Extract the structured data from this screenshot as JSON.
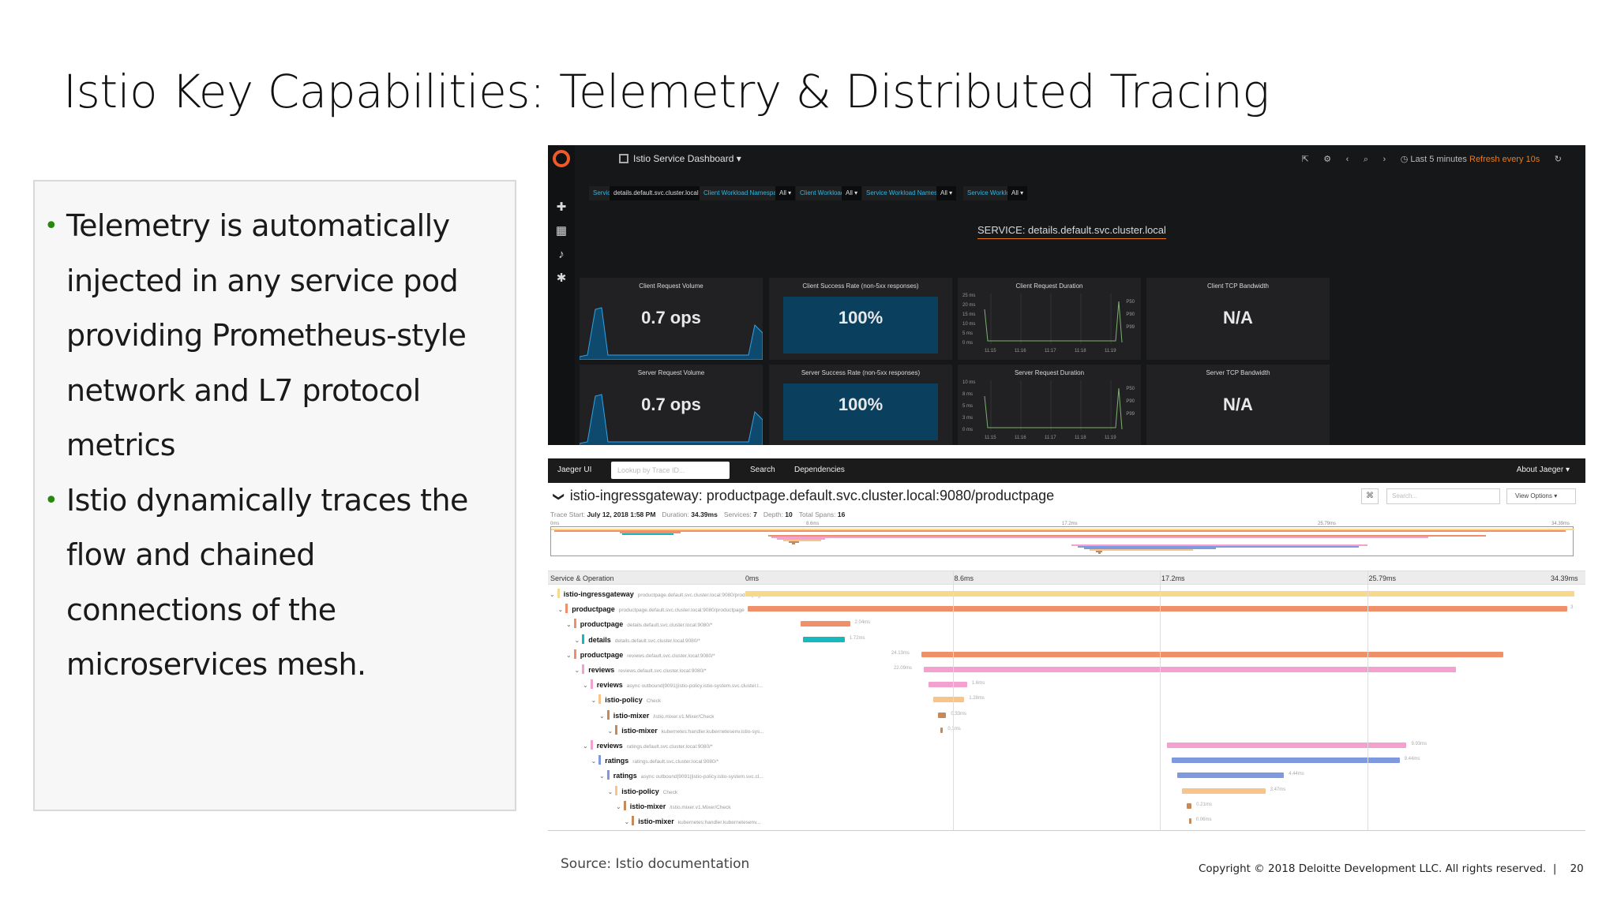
{
  "slide": {
    "title": "Istio Key Capabilities: Telemetry & Distributed Tracing",
    "bullets": [
      "Telemetry is automatically injected in any service pod providing Prometheus-style network and L7 protocol metrics",
      "Istio dynamically traces the flow and chained connections of the microservices mesh."
    ],
    "bullet_glyph": "•",
    "source": "Source: Istio documentation",
    "copyright": "Copyright © 2018 Deloitte Development LLC. All rights reserved.",
    "separator": "|",
    "page_number": "20"
  },
  "grafana": {
    "dashboard_title": "Istio Service Dashboard",
    "dropdown_glyph": "▾",
    "time_range": "Last 5 minutes",
    "refresh": "Refresh every 10s",
    "variables": [
      {
        "label": "Service",
        "value": "details.default.svc.cluster.local ▾"
      },
      {
        "label": "Client Workload Namespace",
        "value": "All ▾"
      },
      {
        "label": "Client Workload",
        "value": "All ▾"
      },
      {
        "label": "Service Workload Namespace",
        "value": "All ▾"
      },
      {
        "label": "Service Workload",
        "value": "All ▾"
      }
    ],
    "service_header": "SERVICE: details.default.svc.cluster.local",
    "panels_top": [
      {
        "title": "Client Request Volume",
        "value": "0.7 ops"
      },
      {
        "title": "Client Success Rate (non-5xx responses)",
        "value": "100%"
      },
      {
        "title": "Client Request Duration",
        "y_ticks": [
          "25 ms",
          "20 ms",
          "15 ms",
          "10 ms",
          "5 ms",
          "0 ms"
        ],
        "x_ticks": [
          "11:15",
          "11:16",
          "11:17",
          "11:18",
          "11:19"
        ],
        "legend": [
          "P50",
          "P90",
          "P99"
        ]
      },
      {
        "title": "Client TCP Bandwidth",
        "value": "N/A"
      }
    ],
    "panels_bottom": [
      {
        "title": "Server Request Volume",
        "value": "0.7 ops"
      },
      {
        "title": "Server Success Rate (non-5xx responses)",
        "value": "100%"
      },
      {
        "title": "Server Request Duration",
        "y_ticks": [
          "10 ms",
          "8 ms",
          "5 ms",
          "3 ms",
          "0 ms"
        ],
        "x_ticks": [
          "11:15",
          "11:16",
          "11:17",
          "11:18",
          "11:19"
        ],
        "legend": [
          "P50",
          "P90",
          "P99"
        ]
      },
      {
        "title": "Server TCP Bandwidth",
        "value": "N/A"
      }
    ],
    "colors": {
      "accent": "#eb7b18",
      "blue": "#33b5e5",
      "panel": "#212124",
      "stat_bg": "#0b3f5e"
    }
  },
  "jaeger": {
    "brand": "Jaeger UI",
    "lookup_placeholder": "Lookup by Trace ID...",
    "nav": [
      "Search",
      "Dependencies"
    ],
    "about": "About Jaeger ▾",
    "trace_title": "istio-ingressgateway: productpage.default.svc.cluster.local:9080/productpage",
    "chevron": "❯",
    "kbd": "⌘",
    "search_placeholder": "Search...",
    "view_options": "View Options ▾",
    "meta": [
      {
        "label": "Trace Start:",
        "value": "July 12, 2018 1:58 PM"
      },
      {
        "label": "Duration:",
        "value": "34.39ms"
      },
      {
        "label": "Services:",
        "value": "7"
      },
      {
        "label": "Depth:",
        "value": "10"
      },
      {
        "label": "Total Spans:",
        "value": "16"
      }
    ],
    "mini_ticks": [
      "0ms",
      "8.6ms",
      "17.2ms",
      "25.79ms",
      "34.39ms"
    ],
    "header_label": "Service & Operation",
    "time_ticks": [
      "0ms",
      "8.6ms",
      "17.2ms",
      "25.79ms",
      "34.39ms"
    ],
    "spans": [
      {
        "service": "istio-ingressgateway",
        "op": "productpage.default.svc.cluster.local:9080/productpage",
        "depth": 0,
        "start": 0,
        "dur": 34.39,
        "label": "",
        "color": "#f7d88c"
      },
      {
        "service": "productpage",
        "op": "productpage.default.svc.cluster.local:9080/productpage",
        "depth": 1,
        "start": 0.1,
        "dur": 34.0,
        "label": "3",
        "color": "#f0906a"
      },
      {
        "service": "productpage",
        "op": "details.default.svc.cluster.local:9080/*",
        "depth": 2,
        "start": 2.3,
        "dur": 2.04,
        "label": "2.04ms",
        "color": "#f0906a"
      },
      {
        "service": "details",
        "op": "details.default.svc.cluster.local:9080/*",
        "depth": 3,
        "start": 2.4,
        "dur": 1.72,
        "label": "1.72ms",
        "color": "#17b8be"
      },
      {
        "service": "productpage",
        "op": "reviews.default.svc.cluster.local:9080/*",
        "depth": 2,
        "start": 7.3,
        "dur": 24.13,
        "label": "24.13ms",
        "color": "#f0906a"
      },
      {
        "service": "reviews",
        "op": "reviews.default.svc.cluster.local:9080/*",
        "depth": 3,
        "start": 7.4,
        "dur": 22.09,
        "label": "22.09ms",
        "color": "#f3a2cf"
      },
      {
        "service": "reviews",
        "op": "async outbound|9091||istio-policy.istio-system.svc.cluster.l...",
        "depth": 4,
        "start": 7.6,
        "dur": 1.6,
        "label": "1.6ms",
        "color": "#f3a2cf"
      },
      {
        "service": "istio-policy",
        "op": "Check",
        "depth": 5,
        "start": 7.8,
        "dur": 1.28,
        "label": "1.28ms",
        "color": "#f7c48c"
      },
      {
        "service": "istio-mixer",
        "op": "/istio.mixer.v1.Mixer/Check",
        "depth": 6,
        "start": 8.0,
        "dur": 0.33,
        "label": "0.33ms",
        "color": "#c48a5c"
      },
      {
        "service": "istio-mixer",
        "op": "kubernetes:handler.kubernetesenv.istio-sys...",
        "depth": 7,
        "start": 8.1,
        "dur": 0.1,
        "label": "0.1ms",
        "color": "#c48a5c"
      },
      {
        "service": "reviews",
        "op": "ratings.default.svc.cluster.local:9080/*",
        "depth": 4,
        "start": 17.5,
        "dur": 9.93,
        "label": "9.93ms",
        "color": "#f3a2cf"
      },
      {
        "service": "ratings",
        "op": "ratings.default.svc.cluster.local:9080/*",
        "depth": 5,
        "start": 17.7,
        "dur": 9.44,
        "label": "9.44ms",
        "color": "#7e99de"
      },
      {
        "service": "ratings",
        "op": "async outbound|9091||istio-policy.istio-system.svc.cl...",
        "depth": 6,
        "start": 17.9,
        "dur": 4.44,
        "label": "4.44ms",
        "color": "#7e99de"
      },
      {
        "service": "istio-policy",
        "op": "Check",
        "depth": 7,
        "start": 18.1,
        "dur": 3.47,
        "label": "3.47ms",
        "color": "#f7c48c"
      },
      {
        "service": "istio-mixer",
        "op": "/istio.mixer.v1.Mixer/Check",
        "depth": 8,
        "start": 18.3,
        "dur": 0.21,
        "label": "0.21ms",
        "color": "#c48a5c"
      },
      {
        "service": "istio-mixer",
        "op": "kubernetes:handler.kubernetesenv...",
        "depth": 9,
        "start": 18.4,
        "dur": 0.06,
        "label": "0.06ms",
        "color": "#c48a5c"
      }
    ]
  }
}
